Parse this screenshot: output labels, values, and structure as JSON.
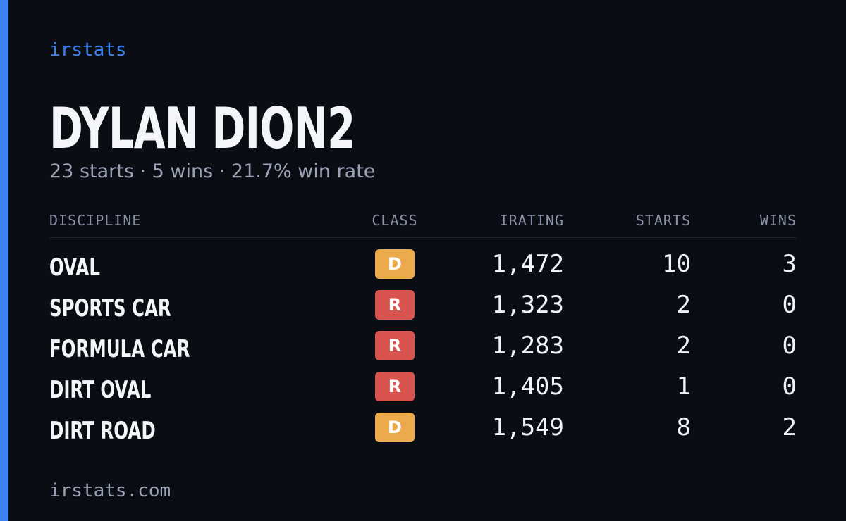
{
  "brand": "irstats",
  "player": {
    "name": "DYLAN DION2",
    "summary": "23 starts · 5 wins · 21.7% win rate"
  },
  "table": {
    "headers": [
      "DISCIPLINE",
      "CLASS",
      "IRATING",
      "STARTS",
      "WINS"
    ],
    "rows": [
      {
        "discipline": "OVAL",
        "class": "D",
        "class_color": "#ebab4c",
        "irating": "1,472",
        "starts": "10",
        "wins": "3"
      },
      {
        "discipline": "SPORTS CAR",
        "class": "R",
        "class_color": "#d9534f",
        "irating": "1,323",
        "starts": "2",
        "wins": "0"
      },
      {
        "discipline": "FORMULA CAR",
        "class": "R",
        "class_color": "#d9534f",
        "irating": "1,283",
        "starts": "2",
        "wins": "0"
      },
      {
        "discipline": "DIRT OVAL",
        "class": "R",
        "class_color": "#d9534f",
        "irating": "1,405",
        "starts": "1",
        "wins": "0"
      },
      {
        "discipline": "DIRT ROAD",
        "class": "D",
        "class_color": "#ebab4c",
        "irating": "1,549",
        "starts": "8",
        "wins": "2"
      }
    ]
  },
  "footer": "irstats.com"
}
